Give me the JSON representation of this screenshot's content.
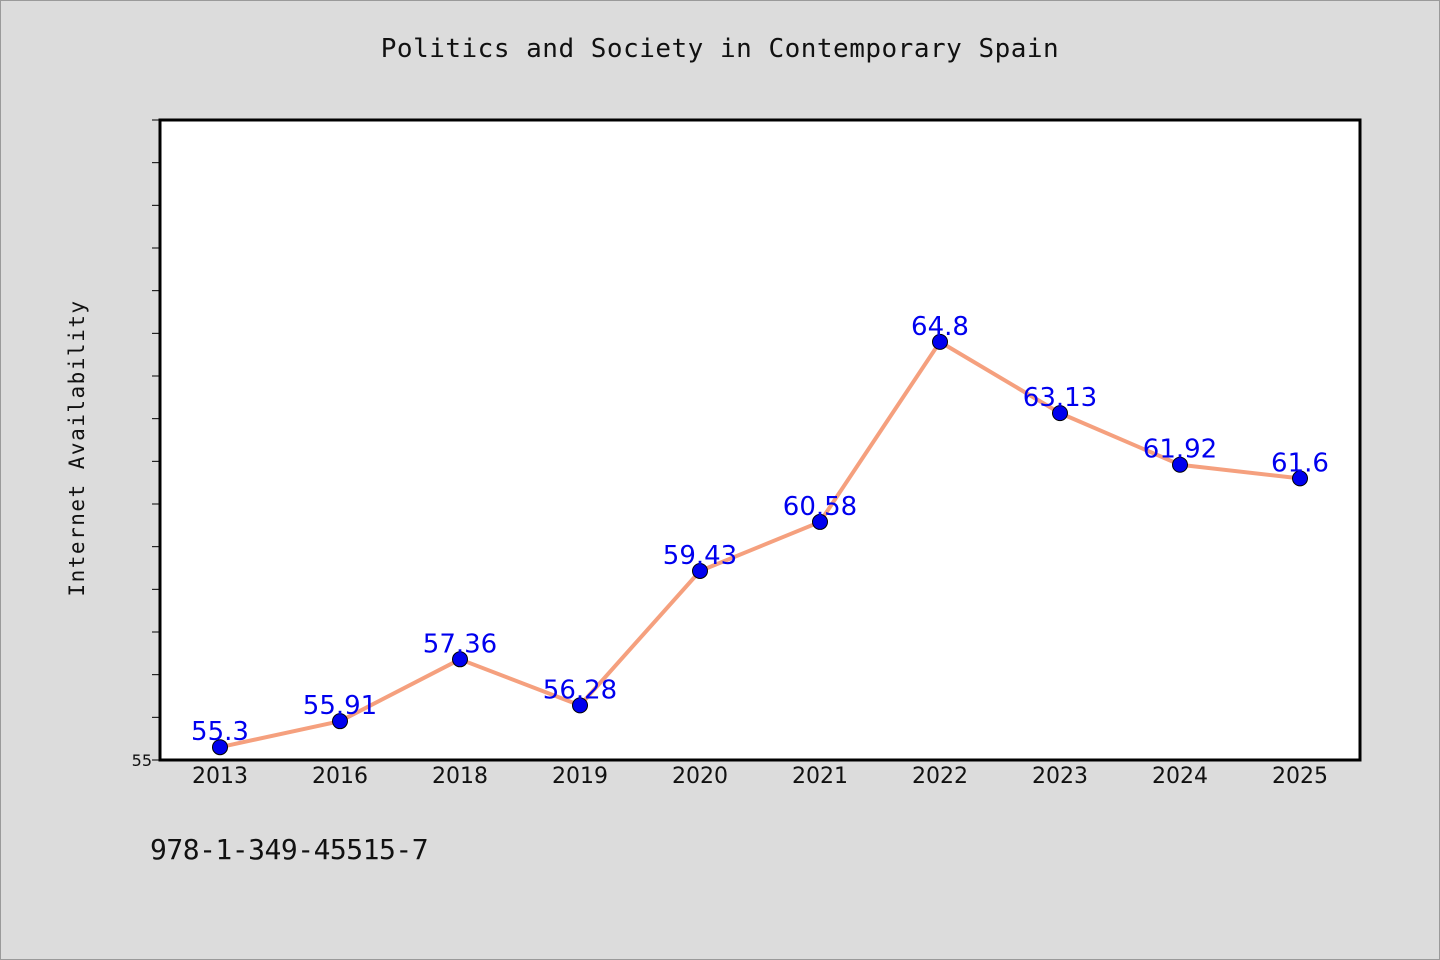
{
  "chart_data": {
    "type": "line",
    "title": "Politics and Society in Contemporary Spain",
    "ylabel": "Internet Availability",
    "xlabel": "",
    "categories": [
      "2013",
      "2016",
      "2018",
      "2019",
      "2020",
      "2021",
      "2022",
      "2023",
      "2024",
      "2025"
    ],
    "series": [
      {
        "values": [
          55.3,
          55.91,
          57.36,
          56.28,
          59.43,
          60.58,
          64.8,
          63.13,
          61.92,
          61.6
        ]
      }
    ],
    "data_labels": [
      "55.3",
      "55.91",
      "57.36",
      "56.28",
      "59.43",
      "60.58",
      "64.8",
      "63.13",
      "61.92",
      "61.6"
    ],
    "ylim": [
      55,
      70
    ],
    "ytick_labels": [
      "55"
    ],
    "grid": false,
    "line_color": "#f5a07e",
    "marker_color": "#0000ee",
    "label_color": "#0000ee",
    "background_color": "#dcdcdc",
    "plot_background": "#ffffff"
  },
  "footer": {
    "isbn": "978-1-349-45515-7"
  }
}
